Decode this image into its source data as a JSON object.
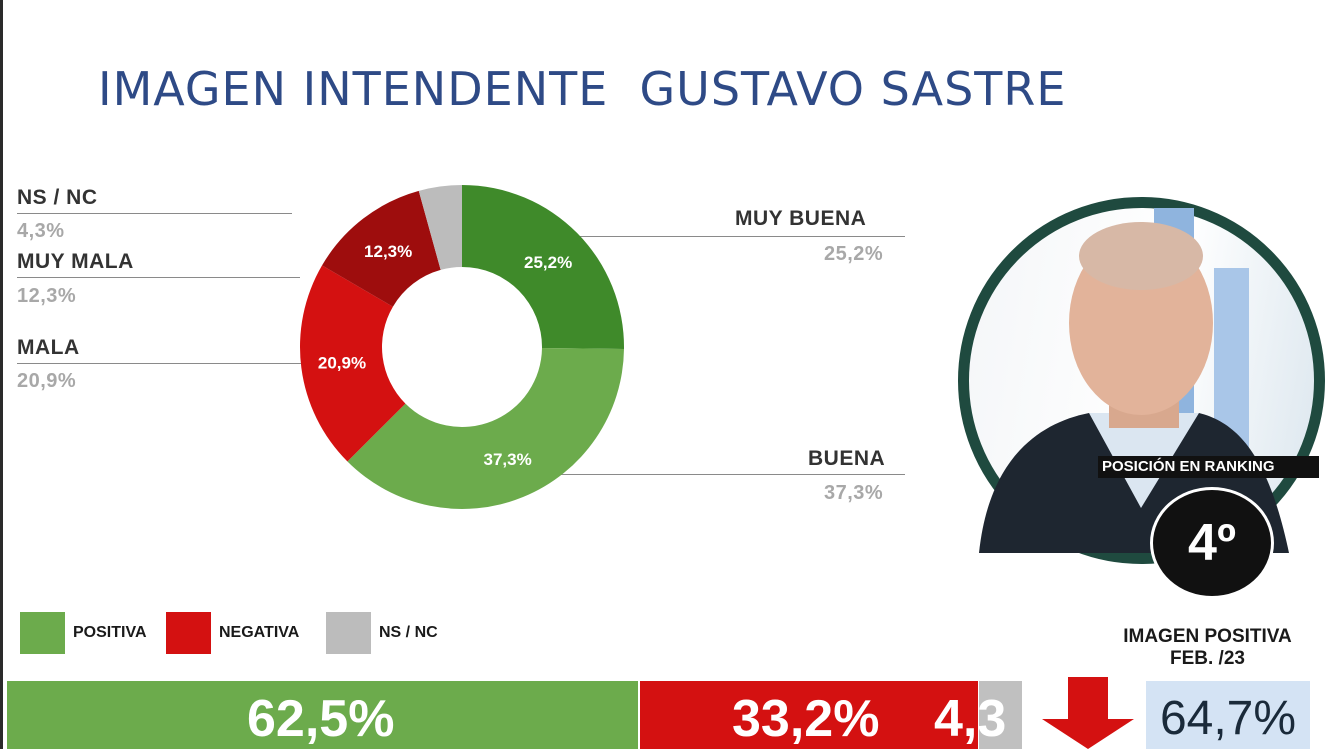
{
  "title": "IMAGEN INTENDENTE  GUSTAVO SASTRE",
  "chart_data": {
    "type": "pie",
    "labels": [
      "MUY BUENA",
      "BUENA",
      "MALA",
      "MUY MALA",
      "NS / NC"
    ],
    "values": [
      25.2,
      37.3,
      20.9,
      12.3,
      4.3
    ],
    "value_labels": [
      "25,2%",
      "37,3%",
      "20,9%",
      "12,3%",
      "4,3%"
    ],
    "colors": [
      "#3f8a2a",
      "#6cab4c",
      "#d41111",
      "#9e0d0d",
      "#bcbcbc"
    ],
    "donut": true,
    "legend": [
      {
        "label": "POSITIVA",
        "color": "#6cab4c"
      },
      {
        "label": "NEGATIVA",
        "color": "#d41111"
      },
      {
        "label": "NS / NC",
        "color": "#bcbcbc"
      }
    ],
    "summary_bar": {
      "values": [
        62.5,
        33.2,
        4.3
      ],
      "labels": [
        "62,5%",
        "33,2%",
        "4,3"
      ],
      "colors": [
        "#6cab4c",
        "#d41111",
        "#c0c0c0"
      ]
    }
  },
  "labels_outside": {
    "ns_nc": {
      "name": "NS / NC",
      "value": "4,3%"
    },
    "muy_mala": {
      "name": "MUY MALA",
      "value": "12,3%"
    },
    "mala": {
      "name": "MALA",
      "value": "20,9%"
    },
    "muy_buena": {
      "name": "MUY BUENA",
      "value": "25,2%"
    },
    "buena": {
      "name": "BUENA",
      "value": "37,3%"
    }
  },
  "ranking": {
    "label": "POSICIÓN EN RANKING",
    "value": "4º"
  },
  "imagen_positiva": {
    "title_line1": "IMAGEN POSITIVA",
    "title_line2": "FEB. /23",
    "value": "64,7%",
    "trend": "down"
  },
  "colors": {
    "title": "#2e4a86",
    "photo_ring": "#1f4a3f",
    "previous_box": "#d4e3f4",
    "arrow": "#d41111"
  }
}
